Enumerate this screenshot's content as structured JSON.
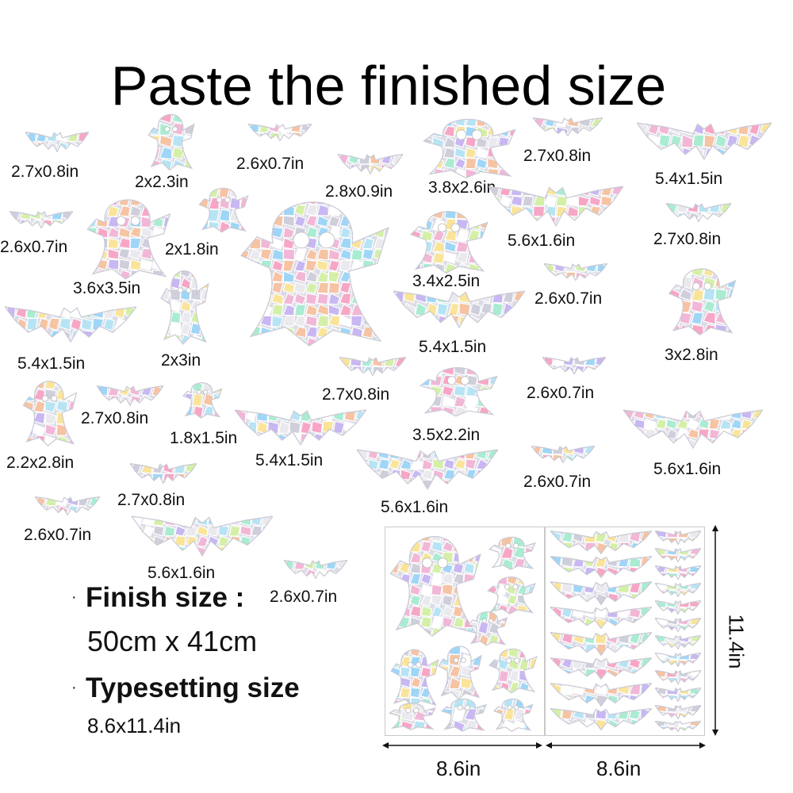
{
  "title": "Paste the finished size",
  "stickers": [
    {
      "kind": "bat",
      "label": "2.7x0.8in"
    },
    {
      "kind": "ghost",
      "label": "2x2.3in"
    },
    {
      "kind": "bat",
      "label": "2.6x0.7in"
    },
    {
      "kind": "bat",
      "label": "2.8x0.9in"
    },
    {
      "kind": "ghost",
      "label": "3.8x2.6in"
    },
    {
      "kind": "bat",
      "label": "2.7x0.8in"
    },
    {
      "kind": "bat",
      "label": "5.4x1.5in"
    },
    {
      "kind": "bat",
      "label": "2.6x0.7in"
    },
    {
      "kind": "ghost",
      "label": "2x1.8in"
    },
    {
      "kind": "bat",
      "label": "5.6x1.6in"
    },
    {
      "kind": "bat",
      "label": "2.7x0.8in"
    },
    {
      "kind": "ghost",
      "label": "3.6x3.5in"
    },
    {
      "kind": "ghost",
      "label": "3.4x2.5in"
    },
    {
      "kind": "bat",
      "label": "2.6x0.7in"
    },
    {
      "kind": "bat",
      "label": "5.4x1.5in"
    },
    {
      "kind": "ghost",
      "label": "2x3in"
    },
    {
      "kind": "bat",
      "label": "5.4x1.5in"
    },
    {
      "kind": "ghost",
      "label": "3x2.8in"
    },
    {
      "kind": "bat",
      "label": "2.7x0.8in"
    },
    {
      "kind": "bat",
      "label": "2.6x0.7in"
    },
    {
      "kind": "ghost",
      "label": "2.2x2.8in"
    },
    {
      "kind": "bat",
      "label": "2.7x0.8in"
    },
    {
      "kind": "ghost",
      "label": "1.8x1.5in"
    },
    {
      "kind": "ghost",
      "label": "3.5x2.2in"
    },
    {
      "kind": "bat",
      "label": "5.4x1.5in"
    },
    {
      "kind": "bat",
      "label": "5.6x1.6in"
    },
    {
      "kind": "bat",
      "label": "5.6x1.6in"
    },
    {
      "kind": "bat",
      "label": "2.6x0.7in"
    },
    {
      "kind": "bat",
      "label": "2.7x0.8in"
    },
    {
      "kind": "bat",
      "label": "2.6x0.7in"
    },
    {
      "kind": "bat",
      "label": "5.6x1.6in"
    },
    {
      "kind": "bat",
      "label": "2.6x0.7in"
    }
  ],
  "info": {
    "finish_label": "Finish size :",
    "finish_value": "50cm x 41cm",
    "typeset_label": "Typesetting size",
    "typeset_value": "8.6x11.4in"
  },
  "sheets": {
    "width_left": "8.6in",
    "width_right": "8.6in",
    "height": "11.4in"
  }
}
